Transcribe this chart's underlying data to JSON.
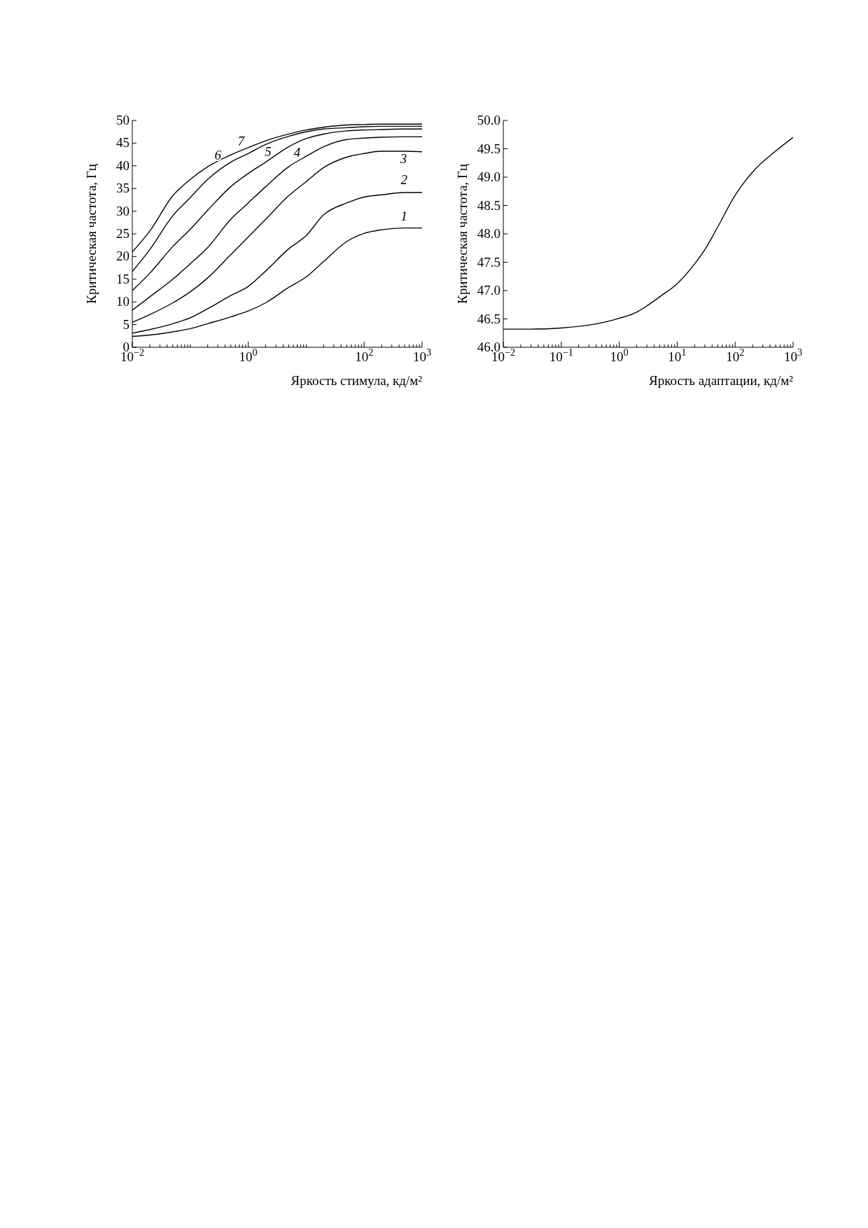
{
  "chart_data": [
    {
      "type": "line",
      "xlabel": "Яркость стимула, кд/м²",
      "ylabel": "Критическая частота, Гц",
      "log": "x",
      "grid": false,
      "legend": false,
      "marker": "none",
      "line_style": "solid",
      "x": [
        0.01,
        0.02,
        0.05,
        0.1,
        0.2,
        0.5,
        1,
        2,
        5,
        10,
        20,
        50,
        100,
        200,
        500,
        1000
      ],
      "series": [
        {
          "color": "#000000",
          "values": [
            2.4,
            2.7,
            3.4,
            4.1,
            5.2,
            6.7,
            8,
            9.8,
            13.2,
            15.5,
            18.9,
            23.3,
            25.1,
            25.9,
            26.3,
            26.3
          ]
        },
        {
          "color": "#000000",
          "values": [
            3.1,
            3.9,
            5.2,
            6.5,
            8.5,
            11.4,
            13.4,
            16.8,
            21.7,
            24.6,
            29.2,
            31.8,
            33.1,
            33.6,
            34.1,
            34.1
          ]
        },
        {
          "color": "#000000",
          "values": [
            5.5,
            7.2,
            9.8,
            12.2,
            15.3,
            20.4,
            24.3,
            28.2,
            33.4,
            36.5,
            39.6,
            41.9,
            42.7,
            43.2,
            43.2,
            43.1
          ]
        },
        {
          "color": "#000000",
          "values": [
            8.2,
            11.1,
            15,
            18.4,
            22,
            28.2,
            31.8,
            35.4,
            39.8,
            42.1,
            44.2,
            45.8,
            46.1,
            46.3,
            46.4,
            46.4
          ]
        },
        {
          "color": "#000000",
          "values": [
            12.5,
            16.3,
            22.2,
            26,
            30.2,
            35.4,
            38.3,
            40.8,
            44.2,
            46,
            47,
            47.7,
            47.9,
            48,
            48.1,
            48.1
          ]
        },
        {
          "color": "#000000",
          "values": [
            16.7,
            21.5,
            29,
            33,
            37,
            40.8,
            42.7,
            44.7,
            46.5,
            47.5,
            48.1,
            48.4,
            48.6,
            48.7,
            48.7,
            48.7
          ]
        },
        {
          "color": "#000000",
          "values": [
            21,
            25.6,
            33.4,
            37,
            39.8,
            42.4,
            44,
            45.5,
            47,
            47.9,
            48.5,
            49,
            49.1,
            49.2,
            49.2,
            49.2
          ]
        }
      ],
      "xlim": [
        0.01,
        1000
      ],
      "xticks": [
        {
          "value": 0.01,
          "label": "10$^{−2}$"
        },
        {
          "value": 0.02,
          "label": null
        },
        {
          "value": 0.03,
          "label": null
        },
        {
          "value": 0.04,
          "label": null
        },
        {
          "value": 0.05,
          "label": null
        },
        {
          "value": 0.06,
          "label": null
        },
        {
          "value": 0.07,
          "label": null
        },
        {
          "value": 0.08,
          "label": null
        },
        {
          "value": 0.09,
          "label": null
        },
        {
          "value": 0.1,
          "label": null
        },
        {
          "value": 0.2,
          "label": null
        },
        {
          "value": 0.3,
          "label": null
        },
        {
          "value": 0.4,
          "label": null
        },
        {
          "value": 0.5,
          "label": null
        },
        {
          "value": 0.6,
          "label": null
        },
        {
          "value": 0.7,
          "label": null
        },
        {
          "value": 0.8,
          "label": null
        },
        {
          "value": 0.9,
          "label": null
        },
        {
          "value": 1,
          "label": "10$^{0}$"
        },
        {
          "value": 2,
          "label": null
        },
        {
          "value": 3,
          "label": null
        },
        {
          "value": 4,
          "label": null
        },
        {
          "value": 5,
          "label": null
        },
        {
          "value": 6,
          "label": null
        },
        {
          "value": 7,
          "label": null
        },
        {
          "value": 8,
          "label": null
        },
        {
          "value": 9,
          "label": null
        },
        {
          "value": 10,
          "label": null
        },
        {
          "value": 20,
          "label": null
        },
        {
          "value": 30,
          "label": null
        },
        {
          "value": 40,
          "label": null
        },
        {
          "value": 50,
          "label": null
        },
        {
          "value": 60,
          "label": null
        },
        {
          "value": 70,
          "label": null
        },
        {
          "value": 80,
          "label": null
        },
        {
          "value": 90,
          "label": null
        },
        {
          "value": 100,
          "label": "10$^{2}$"
        },
        {
          "value": 200,
          "label": null
        },
        {
          "value": 300,
          "label": null
        },
        {
          "value": 400,
          "label": null
        },
        {
          "value": 500,
          "label": null
        },
        {
          "value": 600,
          "label": null
        },
        {
          "value": 700,
          "label": null
        },
        {
          "value": 800,
          "label": null
        },
        {
          "value": 900,
          "label": null
        },
        {
          "value": 1000,
          "label": "10$^{3}$"
        }
      ],
      "ylim": [
        0,
        50
      ],
      "yticks": [
        0,
        5,
        10,
        15,
        20,
        25,
        30,
        35,
        40,
        45,
        50
      ],
      "annotations": [
        "1",
        "2",
        "3",
        "4",
        "5",
        "6",
        "7"
      ]
    },
    {
      "type": "line",
      "xlabel": "Яркость адаптации, кд/м²",
      "ylabel": "Критическая частота, Гц",
      "log": "x",
      "grid": false,
      "legend": false,
      "marker": "none",
      "line_style": "solid",
      "x": [
        0.01,
        0.03,
        0.1,
        0.3,
        1,
        2,
        3,
        5,
        10,
        20,
        30,
        50,
        100,
        200,
        500,
        1000
      ],
      "series": [
        {
          "color": "#000000",
          "values": [
            46.32,
            46.32,
            46.34,
            46.39,
            46.51,
            46.62,
            46.73,
            46.89,
            47.12,
            47.47,
            47.72,
            48.12,
            48.68,
            49.09,
            49.46,
            49.7
          ]
        }
      ],
      "xlim": [
        0.01,
        1000
      ],
      "xticks": [
        {
          "value": 0.01,
          "label": "10$^{−2}$"
        },
        {
          "value": 0.02,
          "label": null
        },
        {
          "value": 0.03,
          "label": null
        },
        {
          "value": 0.04,
          "label": null
        },
        {
          "value": 0.05,
          "label": null
        },
        {
          "value": 0.06,
          "label": null
        },
        {
          "value": 0.07,
          "label": null
        },
        {
          "value": 0.08,
          "label": null
        },
        {
          "value": 0.09,
          "label": null
        },
        {
          "value": 0.1,
          "label": "10$^{−1}$"
        },
        {
          "value": 0.2,
          "label": null
        },
        {
          "value": 0.3,
          "label": null
        },
        {
          "value": 0.4,
          "label": null
        },
        {
          "value": 0.5,
          "label": null
        },
        {
          "value": 0.6,
          "label": null
        },
        {
          "value": 0.7,
          "label": null
        },
        {
          "value": 0.8,
          "label": null
        },
        {
          "value": 0.9,
          "label": null
        },
        {
          "value": 1,
          "label": "10$^{0}$"
        },
        {
          "value": 2,
          "label": null
        },
        {
          "value": 3,
          "label": null
        },
        {
          "value": 4,
          "label": null
        },
        {
          "value": 5,
          "label": null
        },
        {
          "value": 6,
          "label": null
        },
        {
          "value": 7,
          "label": null
        },
        {
          "value": 8,
          "label": null
        },
        {
          "value": 9,
          "label": null
        },
        {
          "value": 10,
          "label": "10$^{1}$"
        },
        {
          "value": 20,
          "label": null
        },
        {
          "value": 30,
          "label": null
        },
        {
          "value": 40,
          "label": null
        },
        {
          "value": 50,
          "label": null
        },
        {
          "value": 60,
          "label": null
        },
        {
          "value": 70,
          "label": null
        },
        {
          "value": 80,
          "label": null
        },
        {
          "value": 90,
          "label": null
        },
        {
          "value": 100,
          "label": "10$^{2}$"
        },
        {
          "value": 200,
          "label": null
        },
        {
          "value": 300,
          "label": null
        },
        {
          "value": 400,
          "label": null
        },
        {
          "value": 500,
          "label": null
        },
        {
          "value": 600,
          "label": null
        },
        {
          "value": 700,
          "label": null
        },
        {
          "value": 800,
          "label": null
        },
        {
          "value": 900,
          "label": null
        },
        {
          "value": 1000,
          "label": "10$^{3}$"
        }
      ],
      "ylim": [
        46,
        50
      ],
      "yticks": [
        {
          "value": 46,
          "label": "46.0"
        },
        {
          "value": 46.5,
          "label": "46.5"
        },
        {
          "value": 47,
          "label": "47.0"
        },
        {
          "value": 47.5,
          "label": "47.5"
        },
        {
          "value": 48,
          "label": "48.0"
        },
        {
          "value": 48.5,
          "label": "48.5"
        },
        {
          "value": 49,
          "label": "49.0"
        },
        {
          "value": 49.5,
          "label": "49.5"
        },
        {
          "value": 50,
          "label": "50.0"
        }
      ]
    }
  ]
}
